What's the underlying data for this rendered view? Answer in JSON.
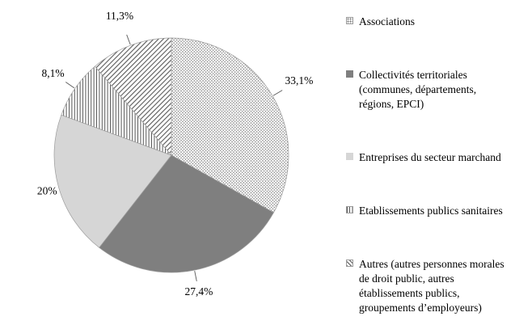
{
  "chart_data": {
    "type": "pie",
    "title": "",
    "unit": "%",
    "decimal_style": "comma",
    "start_angle_deg": 0,
    "direction": "clockwise",
    "legend_position": "right",
    "grid": false,
    "segments": [
      {
        "label": "Associations",
        "value": 33.1,
        "display": "33,1%",
        "pattern": "dots"
      },
      {
        "label": "Collectivités territoriales (communes, départements, régions, EPCI)",
        "value": 27.4,
        "display": "27,4%",
        "pattern": "solid-dark"
      },
      {
        "label": "Entreprises du secteur marchand",
        "value": 20,
        "display": "20%",
        "pattern": "solid-light"
      },
      {
        "label": "Etablissements publics sanitaires",
        "value": 8.1,
        "display": "8,1%",
        "pattern": "vertical-lines"
      },
      {
        "label": "Autres (autres personnes morales de droit public, autres établissements publics, groupements d’employeurs)",
        "value": 11.3,
        "display": "11,3%",
        "pattern": "diagonal-lines"
      }
    ],
    "colors": {
      "solid_dark": "#7f7f7f",
      "solid_light": "#d6d6d6",
      "pattern_line": "#595959",
      "pattern_dot": "#737373",
      "slice_outline": "#9b9b9b",
      "leader_line": "#595959",
      "label_text": "#000000",
      "background": "#ffffff"
    }
  }
}
